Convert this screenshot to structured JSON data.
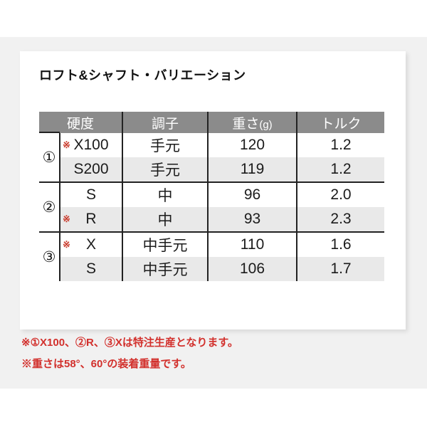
{
  "page": {
    "title": "ロフト&シャフト・バリエーション"
  },
  "table": {
    "headers": [
      "硬度",
      "調子",
      "重さ",
      "トルク"
    ],
    "weight_unit": "(g)",
    "groups": [
      {
        "number": "①",
        "rows": [
          {
            "asterisk": "※",
            "hardness": "X100",
            "flex": "手元",
            "weight": "120",
            "torque": "1.2"
          },
          {
            "asterisk": "",
            "hardness": "S200",
            "flex": "手元",
            "weight": "119",
            "torque": "1.2"
          }
        ]
      },
      {
        "number": "②",
        "rows": [
          {
            "asterisk": "",
            "hardness": "S",
            "flex": "中",
            "weight": "96",
            "torque": "2.0"
          },
          {
            "asterisk": "※",
            "hardness": "R",
            "flex": "中",
            "weight": "93",
            "torque": "2.3"
          }
        ]
      },
      {
        "number": "③",
        "rows": [
          {
            "asterisk": "※",
            "hardness": "X",
            "flex": "中手元",
            "weight": "110",
            "torque": "1.6"
          },
          {
            "asterisk": "",
            "hardness": "S",
            "flex": "中手元",
            "weight": "106",
            "torque": "1.7"
          }
        ]
      }
    ]
  },
  "notes": [
    "※①X100、②R、③Xは特注生産となります。",
    "※重さは58°、60°の装着重量です。"
  ],
  "colors": {
    "header_bg": "#8b8b8b",
    "alt_row_bg": "#e9e9e9",
    "line_dark": "#222222",
    "asterisk_red": "#c9392a",
    "note_red": "#d2302c",
    "band_bg": "#f1f1f1",
    "card_bg": "#ffffff"
  }
}
